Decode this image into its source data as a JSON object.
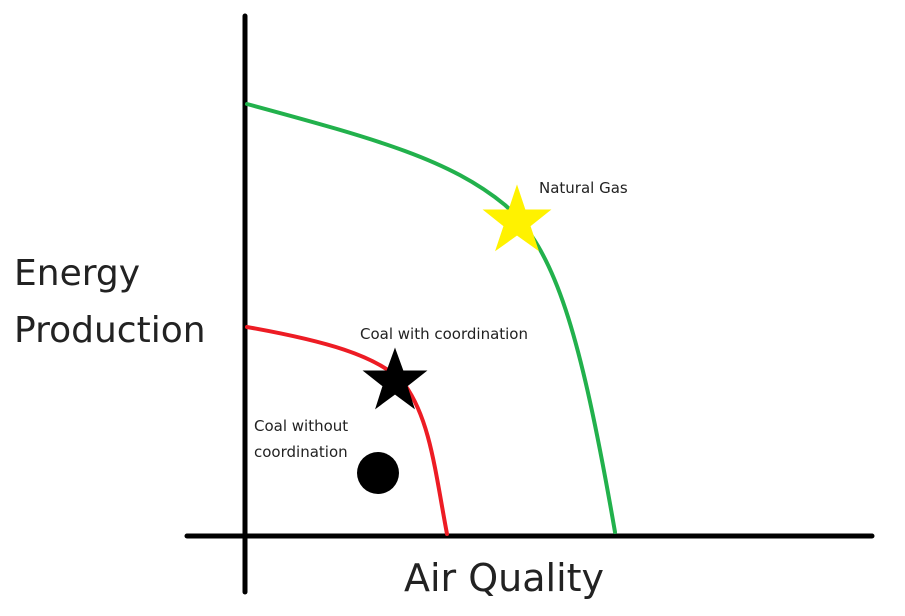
{
  "diagram": {
    "y_axis_label_lines": [
      "Energy",
      "Production"
    ],
    "x_axis_label": "Air Quality",
    "curves": [
      {
        "id": "natural-gas-frontier",
        "color": "#22b14c"
      },
      {
        "id": "coal-frontier",
        "color": "#ed1c24"
      }
    ],
    "markers": [
      {
        "id": "natural-gas",
        "label": "Natural Gas",
        "shape": "star-icon",
        "color": "#fff200"
      },
      {
        "id": "coal-with-coordination",
        "label": "Coal with coordination",
        "shape": "star-icon",
        "color": "#000000"
      },
      {
        "id": "coal-without-coordination",
        "label_lines": [
          "Coal without",
          "coordination"
        ],
        "shape": "dot-icon",
        "color": "#000000"
      }
    ]
  }
}
